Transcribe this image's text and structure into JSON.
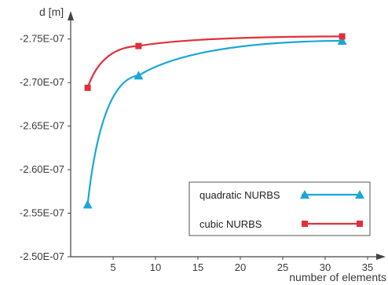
{
  "chart_data": {
    "type": "line",
    "xlabel": "number of elements",
    "ylabel": "d [m]",
    "x_ticks": [
      5,
      10,
      15,
      20,
      25,
      30,
      35
    ],
    "y_ticks": [
      -2.5e-07,
      -2.55e-07,
      -2.6e-07,
      -2.65e-07,
      -2.7e-07,
      -2.75e-07
    ],
    "y_tick_labels": [
      "-2.50E-07",
      "-2.55E-07",
      "-2.60E-07",
      "-2.65E-07",
      "-2.70E-07",
      "-2.75E-07"
    ],
    "xlim": [
      0,
      35
    ],
    "ylim": [
      -2.5e-07,
      -2.775e-07
    ],
    "grid": false,
    "legend_position": "bottom-right",
    "series": [
      {
        "name": "quadratic NURBS",
        "color": "#1aa7d8",
        "marker": "triangle",
        "x": [
          2,
          8,
          32
        ],
        "y": [
          -2.56e-07,
          -2.708e-07,
          -2.748e-07
        ]
      },
      {
        "name": "cubic NURBS",
        "color": "#e0303a",
        "marker": "square",
        "x": [
          2,
          8,
          32
        ],
        "y": [
          -2.694e-07,
          -2.742e-07,
          -2.753e-07
        ]
      }
    ]
  }
}
